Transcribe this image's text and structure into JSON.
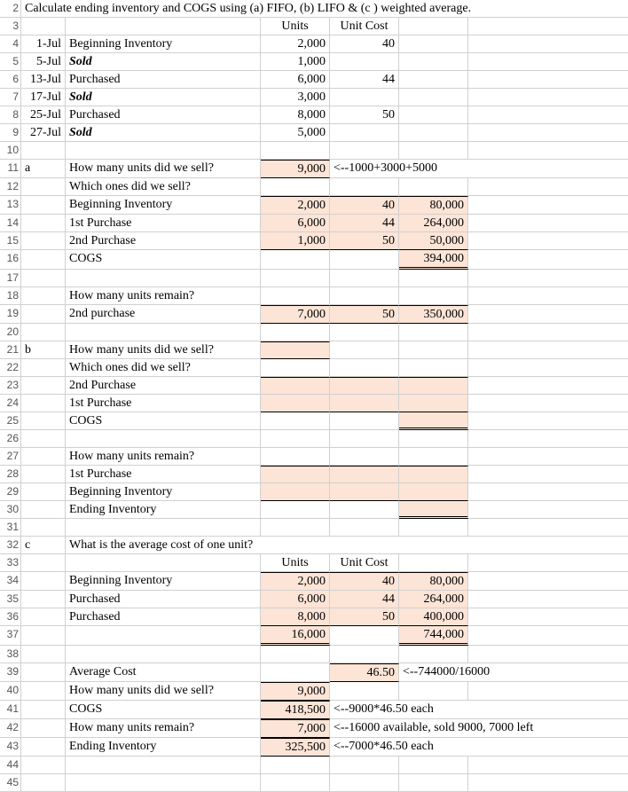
{
  "title": "Calculate ending inventory and COGS using (a) FIFO, (b) LIFO & (c ) weighted average.",
  "hdr": {
    "units": "Units",
    "unitcost": "Unit Cost"
  },
  "tx": [
    {
      "date": "1-Jul",
      "desc": "Beginning Inventory",
      "units": "2,000",
      "cost": "40",
      "bold": false
    },
    {
      "date": "5-Jul",
      "desc": "Sold",
      "units": "1,000",
      "cost": "",
      "bold": true
    },
    {
      "date": "13-Jul",
      "desc": "Purchased",
      "units": "6,000",
      "cost": "44",
      "bold": false
    },
    {
      "date": "17-Jul",
      "desc": "Sold",
      "units": "3,000",
      "cost": "",
      "bold": true
    },
    {
      "date": "25-Jul",
      "desc": "Purchased",
      "units": "8,000",
      "cost": "50",
      "bold": false
    },
    {
      "date": "27-Jul",
      "desc": "Sold",
      "units": "5,000",
      "cost": "",
      "bold": true
    }
  ],
  "a": {
    "label": "a",
    "q1": "How many units did we sell?",
    "q1val": "9,000",
    "q1note": "<--1000+3000+5000",
    "q2": "Which ones did we sell?",
    "rows": [
      {
        "d": "Beginning Inventory",
        "u": "2,000",
        "c": "40",
        "t": "80,000"
      },
      {
        "d": "1st Purchase",
        "u": "6,000",
        "c": "44",
        "t": "264,000"
      },
      {
        "d": "2nd Purchase",
        "u": "1,000",
        "c": "50",
        "t": "50,000"
      }
    ],
    "cogs": {
      "d": "COGS",
      "t": "394,000"
    },
    "q3": "How many units remain?",
    "remain": {
      "d": "2nd purchase",
      "u": "7,000",
      "c": "50",
      "t": "350,000"
    }
  },
  "b": {
    "label": "b",
    "q1": "How many units did we sell?",
    "q2": "Which ones did we sell?",
    "r1": "2nd Purchase",
    "r2": "1st Purchase",
    "cogs": "COGS",
    "q3": "How many units remain?",
    "r3": "1st Purchase",
    "r4": "Beginning Inventory",
    "r5": "Ending Inventory"
  },
  "c": {
    "label": "c",
    "q": "What is the average cost of one unit?",
    "rows": [
      {
        "d": "Beginning Inventory",
        "u": "2,000",
        "c": "40",
        "t": "80,000"
      },
      {
        "d": "Purchased",
        "u": "6,000",
        "c": "44",
        "t": "264,000"
      },
      {
        "d": "Purchased",
        "u": "8,000",
        "c": "50",
        "t": "400,000"
      }
    ],
    "sumU": "16,000",
    "sumT": "744,000",
    "avg": {
      "d": "Average Cost",
      "v": "46.50",
      "note": "<--744000/16000"
    },
    "sell": {
      "d": "How many units did we sell?",
      "v": "9,000"
    },
    "cogs": {
      "d": "COGS",
      "v": "418,500",
      "note": "<--9000*46.50 each"
    },
    "rem": {
      "d": "How many units remain?",
      "v": "7,000",
      "note": "<--16000 available, sold 9000, 7000 left"
    },
    "end": {
      "d": "Ending Inventory",
      "v": "325,500",
      "note": "<--7000*46.50 each"
    }
  },
  "rows": [
    "2",
    "3",
    "4",
    "5",
    "6",
    "7",
    "8",
    "9",
    "10",
    "11",
    "12",
    "13",
    "14",
    "15",
    "16",
    "17",
    "18",
    "19",
    "20",
    "21",
    "22",
    "23",
    "24",
    "25",
    "26",
    "27",
    "28",
    "29",
    "30",
    "31",
    "32",
    "33",
    "34",
    "35",
    "36",
    "37",
    "38",
    "39",
    "40",
    "41",
    "42",
    "43",
    "44",
    "45"
  ]
}
